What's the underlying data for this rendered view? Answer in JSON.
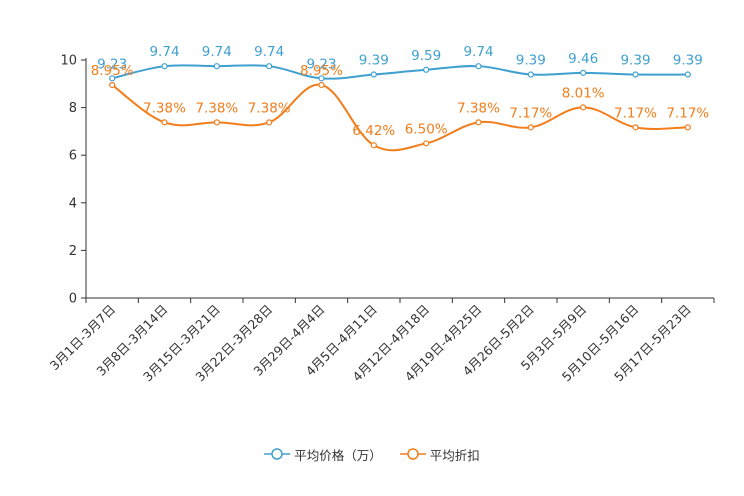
{
  "chart_data": {
    "type": "line",
    "categories": [
      "3月1日-3月7日",
      "3月8日-3月14日",
      "3月15日-3月21日",
      "3月22日-3月28日",
      "3月29日-4月4日",
      "4月5日-4月11日",
      "4月12日-4月18日",
      "4月19日-4月25日",
      "4月26日-5月2日",
      "5月3日-5月9日",
      "5月10日-5月16日",
      "5月17日-5月23日"
    ],
    "series": [
      {
        "name": "平均价格（万）",
        "color": "#3fa0d0",
        "values": [
          9.23,
          9.74,
          9.74,
          9.74,
          9.23,
          9.39,
          9.59,
          9.74,
          9.39,
          9.46,
          9.39,
          9.39
        ],
        "labels": [
          "9.23",
          "9.74",
          "9.74",
          "9.74",
          "9.23",
          "9.39",
          "9.59",
          "9.74",
          "9.39",
          "9.46",
          "9.39",
          "9.39"
        ]
      },
      {
        "name": "平均折扣",
        "color": "#f27d1b",
        "values": [
          8.95,
          7.38,
          7.38,
          7.38,
          8.95,
          6.42,
          6.5,
          7.38,
          7.17,
          8.01,
          7.17,
          7.17
        ],
        "labels": [
          "8.95%",
          "7.38%",
          "7.38%",
          "7.38%",
          "8.95%",
          "6.42%",
          "6.50%",
          "7.38%",
          "7.17%",
          "8.01%",
          "7.17%",
          "7.17%"
        ]
      }
    ],
    "yticks": [
      "0",
      "2",
      "4",
      "6",
      "8",
      "10"
    ],
    "ylim": [
      0,
      10
    ]
  }
}
